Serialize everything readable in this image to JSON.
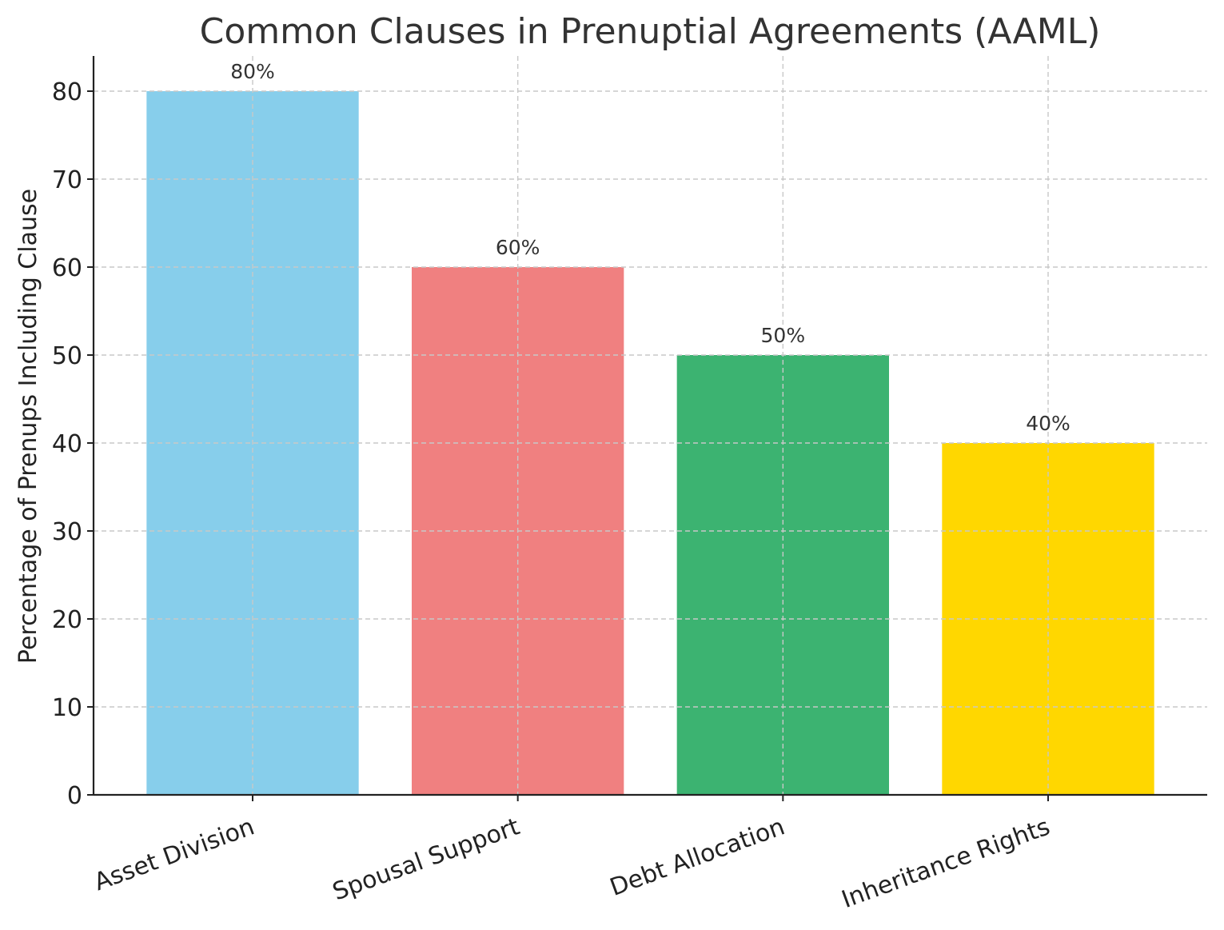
{
  "chart_data": {
    "type": "bar",
    "title": "Common Clauses in Prenuptial Agreements (AAML)",
    "xlabel": "",
    "ylabel": "Percentage of Prenups Including Clause",
    "categories": [
      "Asset Division",
      "Spousal Support",
      "Debt Allocation",
      "Inheritance Rights"
    ],
    "values": [
      80,
      60,
      50,
      40
    ],
    "data_labels": [
      "80%",
      "60%",
      "50%",
      "40%"
    ],
    "colors": [
      "#87CEEB",
      "#F08080",
      "#3CB371",
      "#FFD700"
    ],
    "yticks": [
      0,
      10,
      20,
      30,
      40,
      50,
      60,
      70,
      80
    ],
    "ylim": [
      0,
      84
    ],
    "grid": true,
    "legend": "none"
  }
}
